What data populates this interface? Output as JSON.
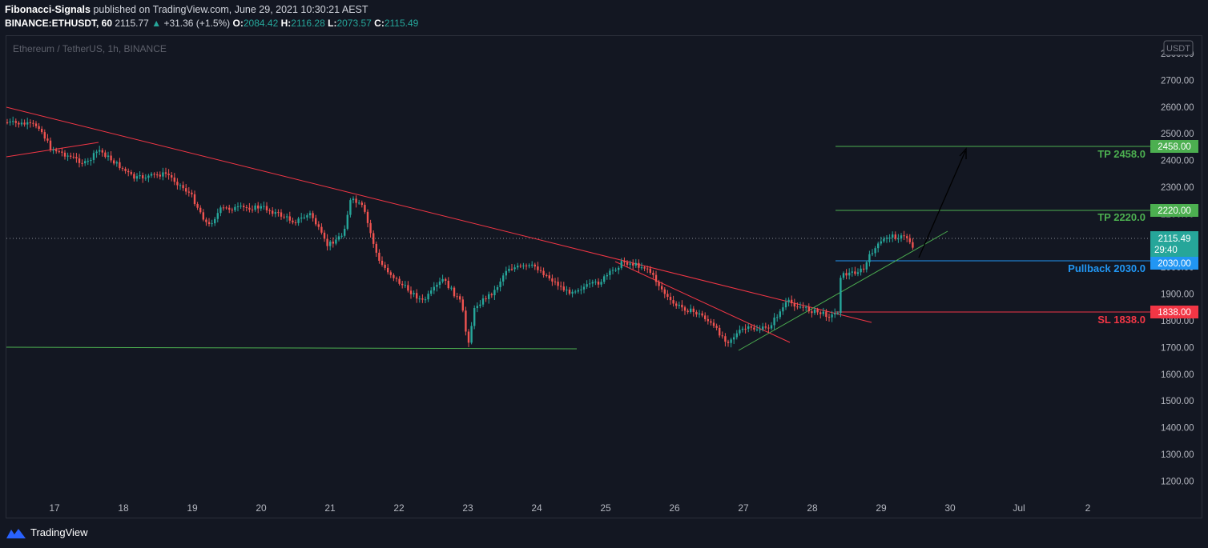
{
  "header": {
    "author": "Fibonacci-Signals",
    "published_text": "published on TradingView.com, June 29, 2021 10:30:21 AEST",
    "symbol": "BINANCE:ETHUSDT, 60",
    "last": "2115.77",
    "change": "+31.36 (+1.5%)",
    "open_label": "O:",
    "open": "2084.42",
    "high_label": "H:",
    "high": "2116.28",
    "low_label": "L:",
    "low": "2073.57",
    "close_label": "C:",
    "close": "2115.49"
  },
  "chart": {
    "legend": "Ethereum / TetherUS, 1h, BINANCE",
    "currency_badge": "USDT",
    "price_ticks": [
      "2800.00",
      "2700.00",
      "2600.00",
      "2500.00",
      "2400.00",
      "2300.00",
      "2200.00",
      "2100.00",
      "2000.00",
      "1900.00",
      "1800.00",
      "1700.00",
      "1600.00",
      "1500.00",
      "1400.00",
      "1300.00",
      "1200.00"
    ],
    "date_ticks": [
      "17",
      "18",
      "19",
      "20",
      "21",
      "22",
      "23",
      "24",
      "25",
      "26",
      "27",
      "28",
      "29",
      "30",
      "Jul",
      "2"
    ],
    "levels": [
      {
        "label": "TP 2458.0",
        "badge": "2458.00",
        "color": "#4caf50"
      },
      {
        "label": "TP 2220.0",
        "badge": "2220.00",
        "color": "#4caf50"
      },
      {
        "label": "Pullback 2030.0",
        "badge": "2030.00",
        "color": "#2196f3"
      },
      {
        "label": "SL 1838.0",
        "badge": "1838.00",
        "color": "#f23645"
      }
    ],
    "current_price": "2115.49",
    "countdown": "29:40",
    "colors": {
      "up": "#26a69a",
      "down": "#ef5350",
      "trend_red": "#f23645",
      "support_green": "#4caf50"
    }
  },
  "footer": {
    "brand": "TradingView"
  }
}
